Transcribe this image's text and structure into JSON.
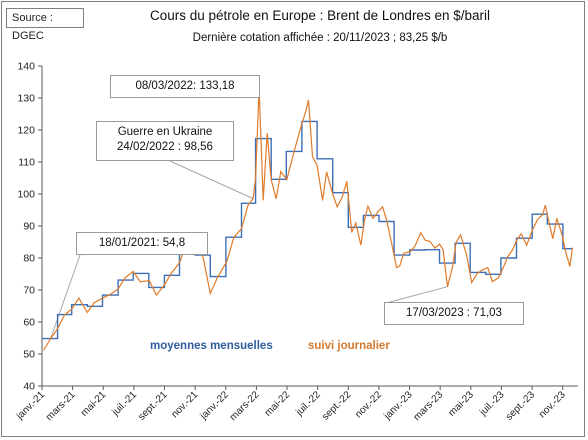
{
  "source_label": "Source : DGEC",
  "title": "Cours du pétrole en Europe : Brent de Londres en $/baril",
  "subtitle": "Dernière cotation affichée : 20/11/2023 ; 83,25 $/b",
  "annotations": {
    "peak": "08/03/2022: 133,18",
    "ukraine_line1": "Guerre en Ukraine",
    "ukraine_line2": "24/02/2022 : 98,56",
    "jan21": "18/01/2021: 54,8",
    "mar23": "17/03/2023 : 71,03"
  },
  "legend": {
    "monthly": "moyennes mensuelles",
    "daily": "suivi journalier"
  },
  "colors": {
    "monthly": "#3d6fb6",
    "daily": "#e07b2a",
    "grid": "#d9d9d9",
    "callout_line": "#a6a6a6"
  },
  "chart_data": {
    "type": "line",
    "title": "Cours du pétrole en Europe : Brent de Londres en $/baril",
    "ylim": [
      40,
      140
    ],
    "y_ticks": [
      40,
      50,
      60,
      70,
      80,
      90,
      100,
      110,
      120,
      130,
      140
    ],
    "x_tick_labels": [
      "janv.-21",
      "mars-21",
      "mai-21",
      "juil.-21",
      "sept.-21",
      "nov.-21",
      "janv.-22",
      "mars-22",
      "mai-22",
      "juil.-22",
      "sept.-22",
      "nov.-22",
      "janv.-23",
      "mars-23",
      "mai-23",
      "juil.-23",
      "sept.-23",
      "nov.-23"
    ],
    "series": [
      {
        "name": "moyennes mensuelles",
        "style": "step",
        "months": [
          "2021-01",
          "2021-02",
          "2021-03",
          "2021-04",
          "2021-05",
          "2021-06",
          "2021-07",
          "2021-08",
          "2021-09",
          "2021-10",
          "2021-11",
          "2021-12",
          "2022-01",
          "2022-02",
          "2022-03",
          "2022-04",
          "2022-05",
          "2022-06",
          "2022-07",
          "2022-08",
          "2022-09",
          "2022-10",
          "2022-11",
          "2022-12",
          "2023-01",
          "2023-02",
          "2023-03",
          "2023-04",
          "2023-05",
          "2023-06",
          "2023-07",
          "2023-08",
          "2023-09",
          "2023-10",
          "2023-11"
        ],
        "values": [
          54.8,
          62.3,
          65.4,
          64.9,
          68.4,
          73.1,
          75.2,
          70.8,
          74.6,
          83.7,
          80.9,
          74.2,
          86.5,
          97.1,
          117.3,
          104.6,
          113.3,
          122.7,
          111.0,
          100.4,
          89.6,
          93.3,
          91.4,
          80.9,
          82.5,
          82.6,
          78.4,
          84.6,
          75.5,
          74.9,
          80.0,
          86.2,
          93.7,
          90.6,
          82.9
        ]
      },
      {
        "name": "suivi journalier",
        "style": "line",
        "dates": [
          "2021-01-04",
          "2021-01-18",
          "2021-02-01",
          "2021-02-15",
          "2021-03-01",
          "2021-03-15",
          "2021-04-01",
          "2021-04-15",
          "2021-05-03",
          "2021-05-17",
          "2021-06-01",
          "2021-06-15",
          "2021-07-01",
          "2021-07-15",
          "2021-08-02",
          "2021-08-16",
          "2021-09-01",
          "2021-09-15",
          "2021-10-01",
          "2021-10-15",
          "2021-11-01",
          "2021-11-15",
          "2021-12-01",
          "2021-12-15",
          "2022-01-03",
          "2022-01-17",
          "2022-02-01",
          "2022-02-14",
          "2022-02-24",
          "2022-03-01",
          "2022-03-08",
          "2022-03-16",
          "2022-03-24",
          "2022-04-01",
          "2022-04-11",
          "2022-04-20",
          "2022-05-02",
          "2022-05-16",
          "2022-05-30",
          "2022-06-08",
          "2022-06-14",
          "2022-06-22",
          "2022-07-01",
          "2022-07-12",
          "2022-07-20",
          "2022-08-01",
          "2022-08-10",
          "2022-08-20",
          "2022-08-29",
          "2022-09-08",
          "2022-09-16",
          "2022-09-26",
          "2022-10-03",
          "2022-10-10",
          "2022-10-20",
          "2022-11-01",
          "2022-11-08",
          "2022-11-16",
          "2022-11-25",
          "2022-12-06",
          "2022-12-12",
          "2022-12-20",
          "2023-01-03",
          "2023-01-12",
          "2023-01-23",
          "2023-02-01",
          "2023-02-10",
          "2023-02-20",
          "2023-03-01",
          "2023-03-08",
          "2023-03-17",
          "2023-03-27",
          "2023-04-03",
          "2023-04-12",
          "2023-04-24",
          "2023-05-04",
          "2023-05-15",
          "2023-05-26",
          "2023-06-05",
          "2023-06-14",
          "2023-06-26",
          "2023-07-05",
          "2023-07-14",
          "2023-07-24",
          "2023-08-01",
          "2023-08-10",
          "2023-08-21",
          "2023-09-01",
          "2023-09-12",
          "2023-09-22",
          "2023-09-27",
          "2023-10-04",
          "2023-10-12",
          "2023-10-20",
          "2023-10-30",
          "2023-11-08",
          "2023-11-15",
          "2023-11-20"
        ],
        "values": [
          51.1,
          54.8,
          57.9,
          62.3,
          64.0,
          67.5,
          63.0,
          66.1,
          67.6,
          68.7,
          70.3,
          73.8,
          75.8,
          72.6,
          72.9,
          68.4,
          71.6,
          75.3,
          78.5,
          84.8,
          84.7,
          81.6,
          68.9,
          73.8,
          79.0,
          86.5,
          89.2,
          96.5,
          98.56,
          105.0,
          133.18,
          98.0,
          119.0,
          104.4,
          98.5,
          107.0,
          104.5,
          113.0,
          121.0,
          125.5,
          129.3,
          111.7,
          109.0,
          98.0,
          106.9,
          100.0,
          96.0,
          99.0,
          104.0,
          88.0,
          91.0,
          84.0,
          91.6,
          96.2,
          92.4,
          94.8,
          96.0,
          91.9,
          85.4,
          77.0,
          77.5,
          81.5,
          82.1,
          83.9,
          87.9,
          85.5,
          85.2,
          83.1,
          84.3,
          82.7,
          71.03,
          77.3,
          84.9,
          87.2,
          80.8,
          72.3,
          75.2,
          76.3,
          77.0,
          72.6,
          73.8,
          76.7,
          80.3,
          82.5,
          85.4,
          87.6,
          84.0,
          88.6,
          92.1,
          93.6,
          96.5,
          91.5,
          86.0,
          92.4,
          87.4,
          81.0,
          77.4,
          83.25
        ]
      }
    ],
    "legend_position": "bottom-left",
    "grid": false
  }
}
